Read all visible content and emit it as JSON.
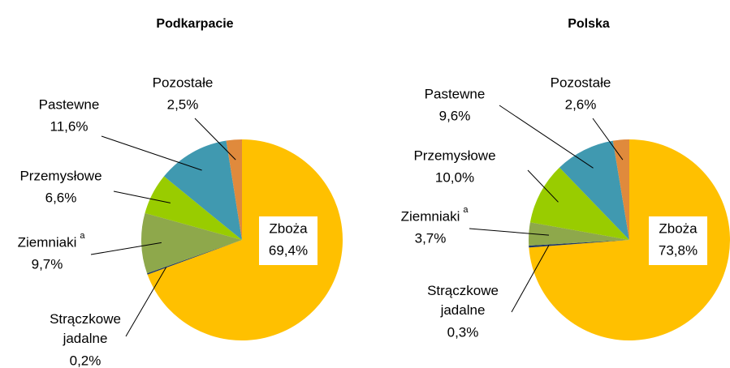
{
  "chart_data": [
    {
      "type": "pie",
      "title": "Podkarpacie",
      "categories": [
        "Zboża",
        "Strączkowe jadalne",
        "Ziemniaki",
        "Przemysłowe",
        "Pastewne",
        "Pozostałe"
      ],
      "category_marks": [
        null,
        null,
        "a",
        null,
        null,
        null
      ],
      "values": [
        69.4,
        0.2,
        9.7,
        6.6,
        11.6,
        2.5
      ],
      "value_labels": [
        "69,4%",
        "0,2%",
        "9,7%",
        "6,6%",
        "11,6%",
        "2,5%"
      ],
      "colors": [
        "#ffc000",
        "#1f3864",
        "#8ea84b",
        "#99cc00",
        "#4099b0",
        "#e08a3c"
      ]
    },
    {
      "type": "pie",
      "title": "Polska",
      "categories": [
        "Zboża",
        "Strączkowe jadalne",
        "Ziemniaki",
        "Przemysłowe",
        "Pastewne",
        "Pozostałe"
      ],
      "category_marks": [
        null,
        null,
        "a",
        null,
        null,
        null
      ],
      "values": [
        73.8,
        0.3,
        3.7,
        10.0,
        9.6,
        2.6
      ],
      "value_labels": [
        "73,8%",
        "0,3%",
        "3,7%",
        "10,0%",
        "9,6%",
        "2,6%"
      ],
      "colors": [
        "#ffc000",
        "#1f3864",
        "#8ea84b",
        "#99cc00",
        "#4099b0",
        "#e08a3c"
      ]
    }
  ]
}
